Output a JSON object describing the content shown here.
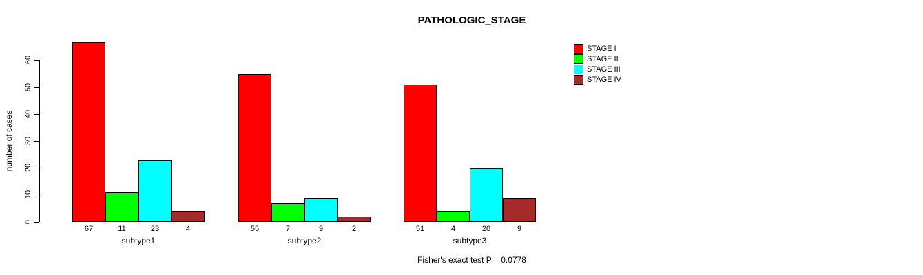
{
  "chart_data": {
    "type": "bar",
    "title": "PATHOLOGIC_STAGE",
    "ylabel": "number of cases",
    "xlabel": "",
    "categories": [
      "subtype1",
      "subtype2",
      "subtype3"
    ],
    "series": [
      {
        "name": "STAGE I",
        "color": "#ff0000",
        "values": [
          67,
          55,
          51
        ]
      },
      {
        "name": "STAGE II",
        "color": "#00ff00",
        "values": [
          11,
          7,
          4
        ]
      },
      {
        "name": "STAGE III",
        "color": "#00ffff",
        "values": [
          23,
          9,
          20
        ]
      },
      {
        "name": "STAGE IV",
        "color": "#a52a2a",
        "values": [
          4,
          2,
          9
        ]
      }
    ],
    "bar_value_labels": [
      [
        67,
        11,
        23,
        4
      ],
      [
        55,
        7,
        9,
        2
      ],
      [
        51,
        4,
        20,
        9
      ]
    ],
    "yticks": [
      0,
      10,
      20,
      30,
      40,
      50,
      60
    ],
    "ylim": [
      0,
      67
    ],
    "grid": false,
    "legend_position": "top-right",
    "bar_border_color": "#000000",
    "annotation": "Fisher's exact test P = 0.0778"
  }
}
